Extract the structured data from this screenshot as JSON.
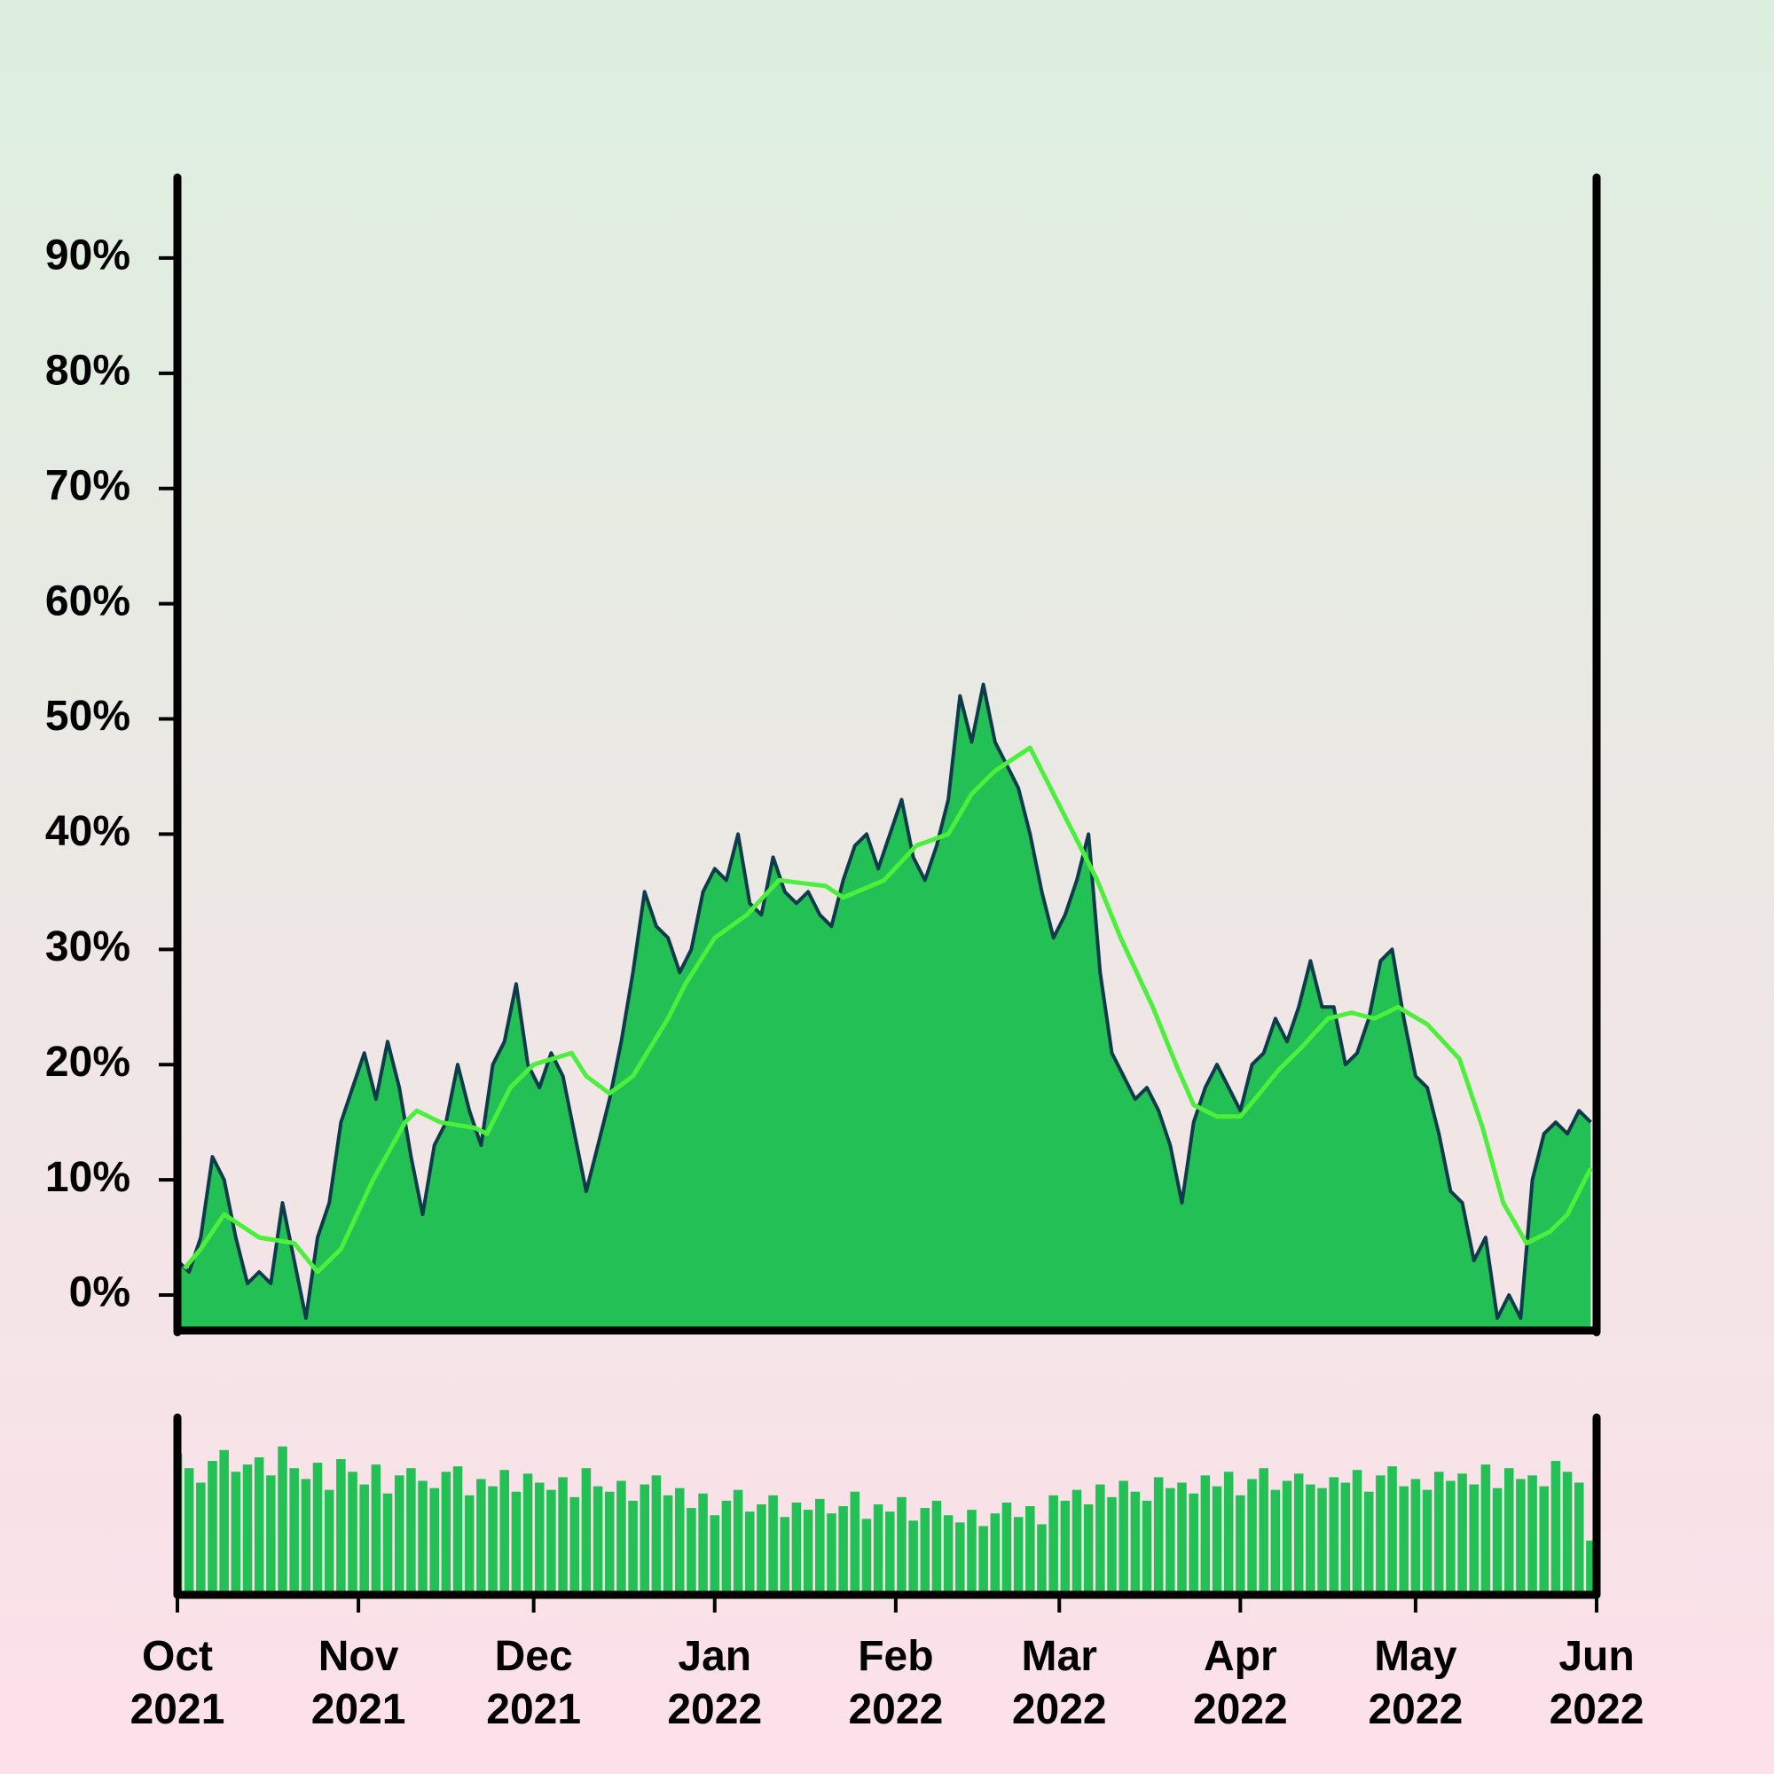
{
  "chart_data": {
    "type": "area",
    "color": "#22c055",
    "line_color": "#0d3b4a",
    "x": [
      0,
      2,
      4,
      6,
      8,
      10,
      12,
      14,
      16,
      18,
      20,
      22,
      24,
      26,
      28,
      30,
      32,
      34,
      36,
      38,
      40,
      42,
      44,
      46,
      48,
      50,
      52,
      54,
      56,
      58,
      60,
      62,
      64,
      66,
      68,
      70,
      72,
      74,
      76,
      78,
      80,
      82,
      84,
      86,
      88,
      90,
      92,
      94,
      96,
      98,
      100,
      102,
      104,
      106,
      108,
      110,
      112,
      114,
      116,
      118,
      120,
      122,
      124,
      126,
      128,
      130,
      132,
      134,
      136,
      138,
      140,
      142,
      144,
      146,
      148,
      150,
      152,
      154,
      156,
      158,
      160,
      162,
      164,
      166,
      168,
      170,
      172,
      174,
      176,
      178,
      180,
      182,
      184,
      186,
      188,
      190,
      192,
      194,
      196,
      198,
      200,
      202,
      204,
      206,
      208,
      210,
      212,
      214,
      216,
      218,
      220,
      222,
      224,
      226,
      228,
      230,
      232,
      234,
      236,
      238,
      240,
      242
    ],
    "values": [
      3,
      2,
      5,
      12,
      10,
      5,
      1,
      2,
      1,
      8,
      3,
      -2,
      5,
      8,
      15,
      18,
      21,
      17,
      22,
      18,
      12,
      7,
      13,
      15,
      20,
      16,
      13,
      20,
      22,
      27,
      20,
      18,
      21,
      19,
      14,
      9,
      13,
      17,
      22,
      28,
      35,
      32,
      31,
      28,
      30,
      35,
      37,
      36,
      40,
      34,
      33,
      38,
      35,
      34,
      35,
      33,
      32,
      36,
      39,
      40,
      37,
      40,
      43,
      38,
      36,
      39,
      43,
      52,
      48,
      53,
      48,
      46,
      44,
      40,
      35,
      31,
      33,
      36,
      40,
      28,
      21,
      19,
      17,
      18,
      16,
      13,
      8,
      15,
      18,
      20,
      18,
      16,
      20,
      21,
      24,
      22,
      25,
      29,
      25,
      25,
      20,
      21,
      24,
      29,
      30,
      24,
      19,
      18,
      14,
      9,
      8,
      3,
      5,
      -2,
      0,
      -2,
      10,
      14,
      15,
      14,
      16,
      15
    ],
    "moving_average": {
      "color": "#4cf03c",
      "x": [
        1.2,
        4,
        8,
        14,
        20,
        24,
        28,
        33.5,
        39,
        41,
        45,
        51,
        53,
        57,
        61,
        67.5,
        70,
        74,
        78,
        84,
        87,
        92,
        97.5,
        103,
        111,
        114,
        121,
        126.5,
        132,
        136,
        140,
        146,
        150,
        153.5,
        157.5,
        161.5,
        167,
        171,
        174,
        178,
        182,
        184.5,
        188.5,
        192.5,
        197,
        201,
        205,
        209,
        214,
        219.5,
        223.5,
        227,
        231,
        235,
        238,
        242
      ],
      "values": [
        2.3,
        4,
        7,
        5,
        4.5,
        2,
        4,
        10,
        15,
        16,
        15,
        14.5,
        14,
        18,
        20,
        21,
        19,
        17.5,
        19,
        24,
        27,
        31,
        33,
        36,
        35.5,
        34.5,
        36,
        39,
        40,
        43.5,
        45.5,
        47.5,
        43.5,
        40,
        36,
        31,
        25,
        20,
        16.5,
        15.5,
        15.5,
        17,
        19.5,
        21.5,
        24,
        24.5,
        24,
        25,
        23.5,
        20.5,
        14.5,
        8,
        4.5,
        5.5,
        7,
        11
      ]
    },
    "volume": {
      "color": "#22c055",
      "ylim": [
        0,
        100
      ],
      "values": [
        78,
        70,
        62,
        74,
        80,
        68,
        72,
        76,
        66,
        82,
        70,
        64,
        73,
        58,
        75,
        68,
        61,
        72,
        56,
        66,
        70,
        63,
        59,
        68,
        71,
        55,
        64,
        60,
        69,
        57,
        67,
        62,
        58,
        65,
        54,
        70,
        60,
        57,
        63,
        52,
        61,
        66,
        55,
        59,
        48,
        56,
        44,
        52,
        58,
        46,
        50,
        55,
        43,
        51,
        47,
        53,
        45,
        49,
        57,
        42,
        50,
        46,
        54,
        41,
        48,
        52,
        44,
        40,
        47,
        38,
        45,
        51,
        43,
        49,
        39,
        55,
        52,
        58,
        50,
        61,
        54,
        63,
        57,
        52,
        65,
        59,
        62,
        56,
        66,
        60,
        68,
        55,
        64,
        70,
        58,
        63,
        67,
        61,
        59,
        65,
        62,
        69,
        57,
        66,
        71,
        60,
        64,
        58,
        68,
        63,
        67,
        61,
        72,
        59,
        70,
        64,
        66,
        60,
        74,
        68,
        62,
        30
      ]
    },
    "xlim": [
      0,
      243
    ],
    "xticks": [
      {
        "value": 0,
        "label": "Oct 2021"
      },
      {
        "value": 31,
        "label": "Nov 2021"
      },
      {
        "value": 61,
        "label": "Dec 2021"
      },
      {
        "value": 92,
        "label": "Jan 2022"
      },
      {
        "value": 123,
        "label": "Feb 2022"
      },
      {
        "value": 151,
        "label": "Mar 2022"
      },
      {
        "value": 182,
        "label": "Apr 2022"
      },
      {
        "value": 212,
        "label": "May 2022"
      },
      {
        "value": 243,
        "label": "Jun 2022"
      }
    ],
    "ylim": [
      -3,
      97
    ],
    "yticks": [
      {
        "value": 0,
        "label": "0%"
      },
      {
        "value": 10,
        "label": "10%"
      },
      {
        "value": 20,
        "label": "20%"
      },
      {
        "value": 30,
        "label": "30%"
      },
      {
        "value": 40,
        "label": "40%"
      },
      {
        "value": 50,
        "label": "50%"
      },
      {
        "value": 60,
        "label": "60%"
      },
      {
        "value": 70,
        "label": "70%"
      },
      {
        "value": 80,
        "label": "80%"
      },
      {
        "value": 90,
        "label": "90%"
      }
    ]
  }
}
